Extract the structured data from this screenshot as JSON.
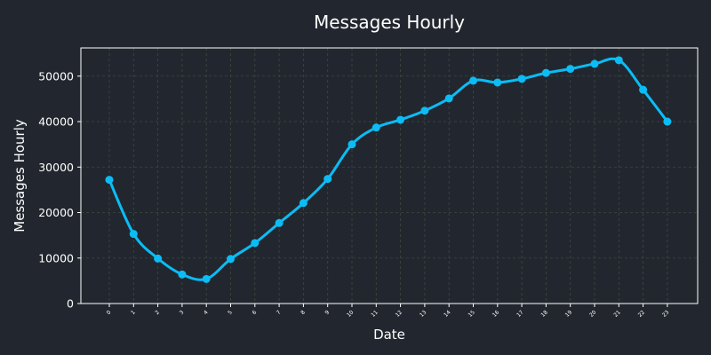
{
  "chart_data": {
    "type": "line",
    "title": "Messages Hourly",
    "xlabel": "Date",
    "ylabel": "Messages Hourly",
    "categories": [
      "0",
      "1",
      "2",
      "3",
      "4",
      "5",
      "6",
      "7",
      "8",
      "9",
      "10",
      "11",
      "12",
      "13",
      "14",
      "15",
      "16",
      "17",
      "18",
      "19",
      "20",
      "21",
      "22",
      "23"
    ],
    "series": [
      {
        "values": [
          27200,
          15300,
          9900,
          6400,
          5400,
          9800,
          13300,
          17700,
          22100,
          27400,
          35000,
          38700,
          40400,
          42400,
          45100,
          49000,
          48600,
          49400,
          50700,
          51600,
          52700,
          53500,
          47000,
          40000
        ],
        "color": "#0bbcf5"
      }
    ],
    "yticks": [
      "0",
      "10000",
      "20000",
      "30000",
      "40000",
      "50000"
    ],
    "ylim": [
      0,
      56200
    ],
    "grid": true,
    "legend": "none",
    "colors": {
      "background": "#22272f",
      "text": "#ffffff",
      "grid": "#3b4a3e",
      "line": "#0bbcf5"
    }
  }
}
